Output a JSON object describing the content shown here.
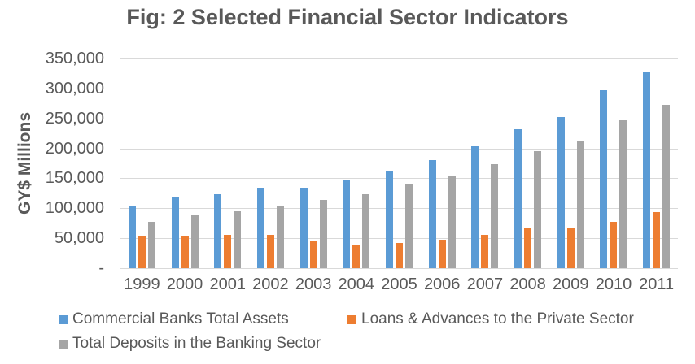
{
  "title": "Fig: 2 Selected Financial Sector Indicators",
  "colors": {
    "text": "#595959",
    "grid": "#D9D9D9",
    "background": "#FFFFFF",
    "series_blue": "#5B9BD5",
    "series_orange": "#ED7D31",
    "series_gray": "#A5A5A5"
  },
  "chart_data": {
    "type": "bar",
    "title": "Fig: 2 Selected Financial Sector Indicators",
    "xlabel": "",
    "ylabel": "GY$ Millions",
    "ylim": [
      0,
      350000
    ],
    "ytick_step": 50000,
    "ytick_labels": [
      "350,000",
      "300,000",
      "250,000",
      "200,000",
      "150,000",
      "100,000",
      "50,000",
      "-"
    ],
    "grid": "horizontal",
    "legend_position": "bottom",
    "categories": [
      "1999",
      "2000",
      "2001",
      "2002",
      "2003",
      "2004",
      "2005",
      "2006",
      "2007",
      "2008",
      "2009",
      "2010",
      "2011"
    ],
    "series": [
      {
        "name": "Commercial Banks Total Assets",
        "color": "#5B9BD5",
        "values": [
          104000,
          117500,
          123500,
          135000,
          135000,
          146000,
          162500,
          181000,
          203000,
          232500,
          252500,
          296500,
          328500
        ]
      },
      {
        "name": "Loans & Advances to the Private Sector",
        "color": "#ED7D31",
        "values": [
          53000,
          53500,
          55000,
          56000,
          44500,
          39500,
          42000,
          47500,
          56000,
          67000,
          67000,
          77500,
          93500
        ]
      },
      {
        "name": "Total Deposits in the Banking Sector",
        "color": "#A5A5A5",
        "values": [
          77000,
          90000,
          95500,
          105000,
          113500,
          123500,
          139500,
          155000,
          174000,
          195000,
          213500,
          247000,
          273000
        ]
      }
    ]
  }
}
